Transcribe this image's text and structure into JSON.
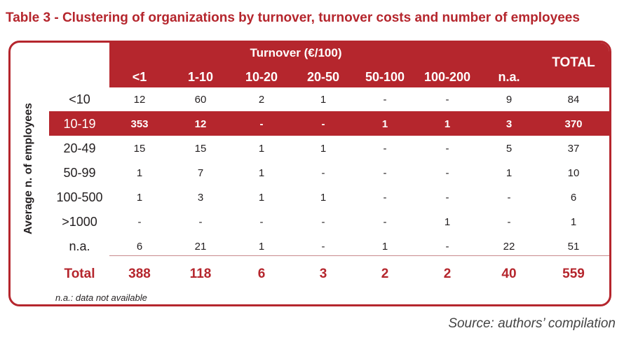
{
  "caption": "Table 3 - Clustering of organizations by turnover, turnover costs and number of employees",
  "table": {
    "column_group_title": "Turnover (€/100)",
    "columns": [
      "<1",
      "1-10",
      "10-20",
      "20-50",
      "50-100",
      "100-200",
      "n.a."
    ],
    "total_header": "TOTAL",
    "row_axis_label": "Average n. of employees",
    "rows": [
      {
        "label": "<10",
        "values": [
          "12",
          "60",
          "2",
          "1",
          "-",
          "-",
          "9"
        ],
        "total": "84"
      },
      {
        "label": "10-19",
        "values": [
          "353",
          "12",
          "-",
          "-",
          "1",
          "1",
          "3"
        ],
        "total": "370"
      },
      {
        "label": "20-49",
        "values": [
          "15",
          "15",
          "1",
          "1",
          "-",
          "-",
          "5"
        ],
        "total": "37"
      },
      {
        "label": "50-99",
        "values": [
          "1",
          "7",
          "1",
          "-",
          "-",
          "-",
          "1"
        ],
        "total": "10"
      },
      {
        "label": "100-500",
        "values": [
          "1",
          "3",
          "1",
          "1",
          "-",
          "-",
          "-"
        ],
        "total": "6"
      },
      {
        "label": ">1000",
        "values": [
          "-",
          "-",
          "-",
          "-",
          "-",
          "1",
          "-"
        ],
        "total": "1"
      },
      {
        "label": "n.a.",
        "values": [
          "6",
          "21",
          "1",
          "-",
          "1",
          "-",
          "22"
        ],
        "total": "51"
      }
    ],
    "highlighted_row_index": 1,
    "totals": {
      "label": "Total",
      "values": [
        "388",
        "118",
        "6",
        "3",
        "2",
        "2",
        "40"
      ],
      "total": "559"
    },
    "note": "n.a.: data not available"
  },
  "source": "Source: authors’ compilation",
  "colors": {
    "accent": "#b5262d",
    "text": "#231f20"
  }
}
